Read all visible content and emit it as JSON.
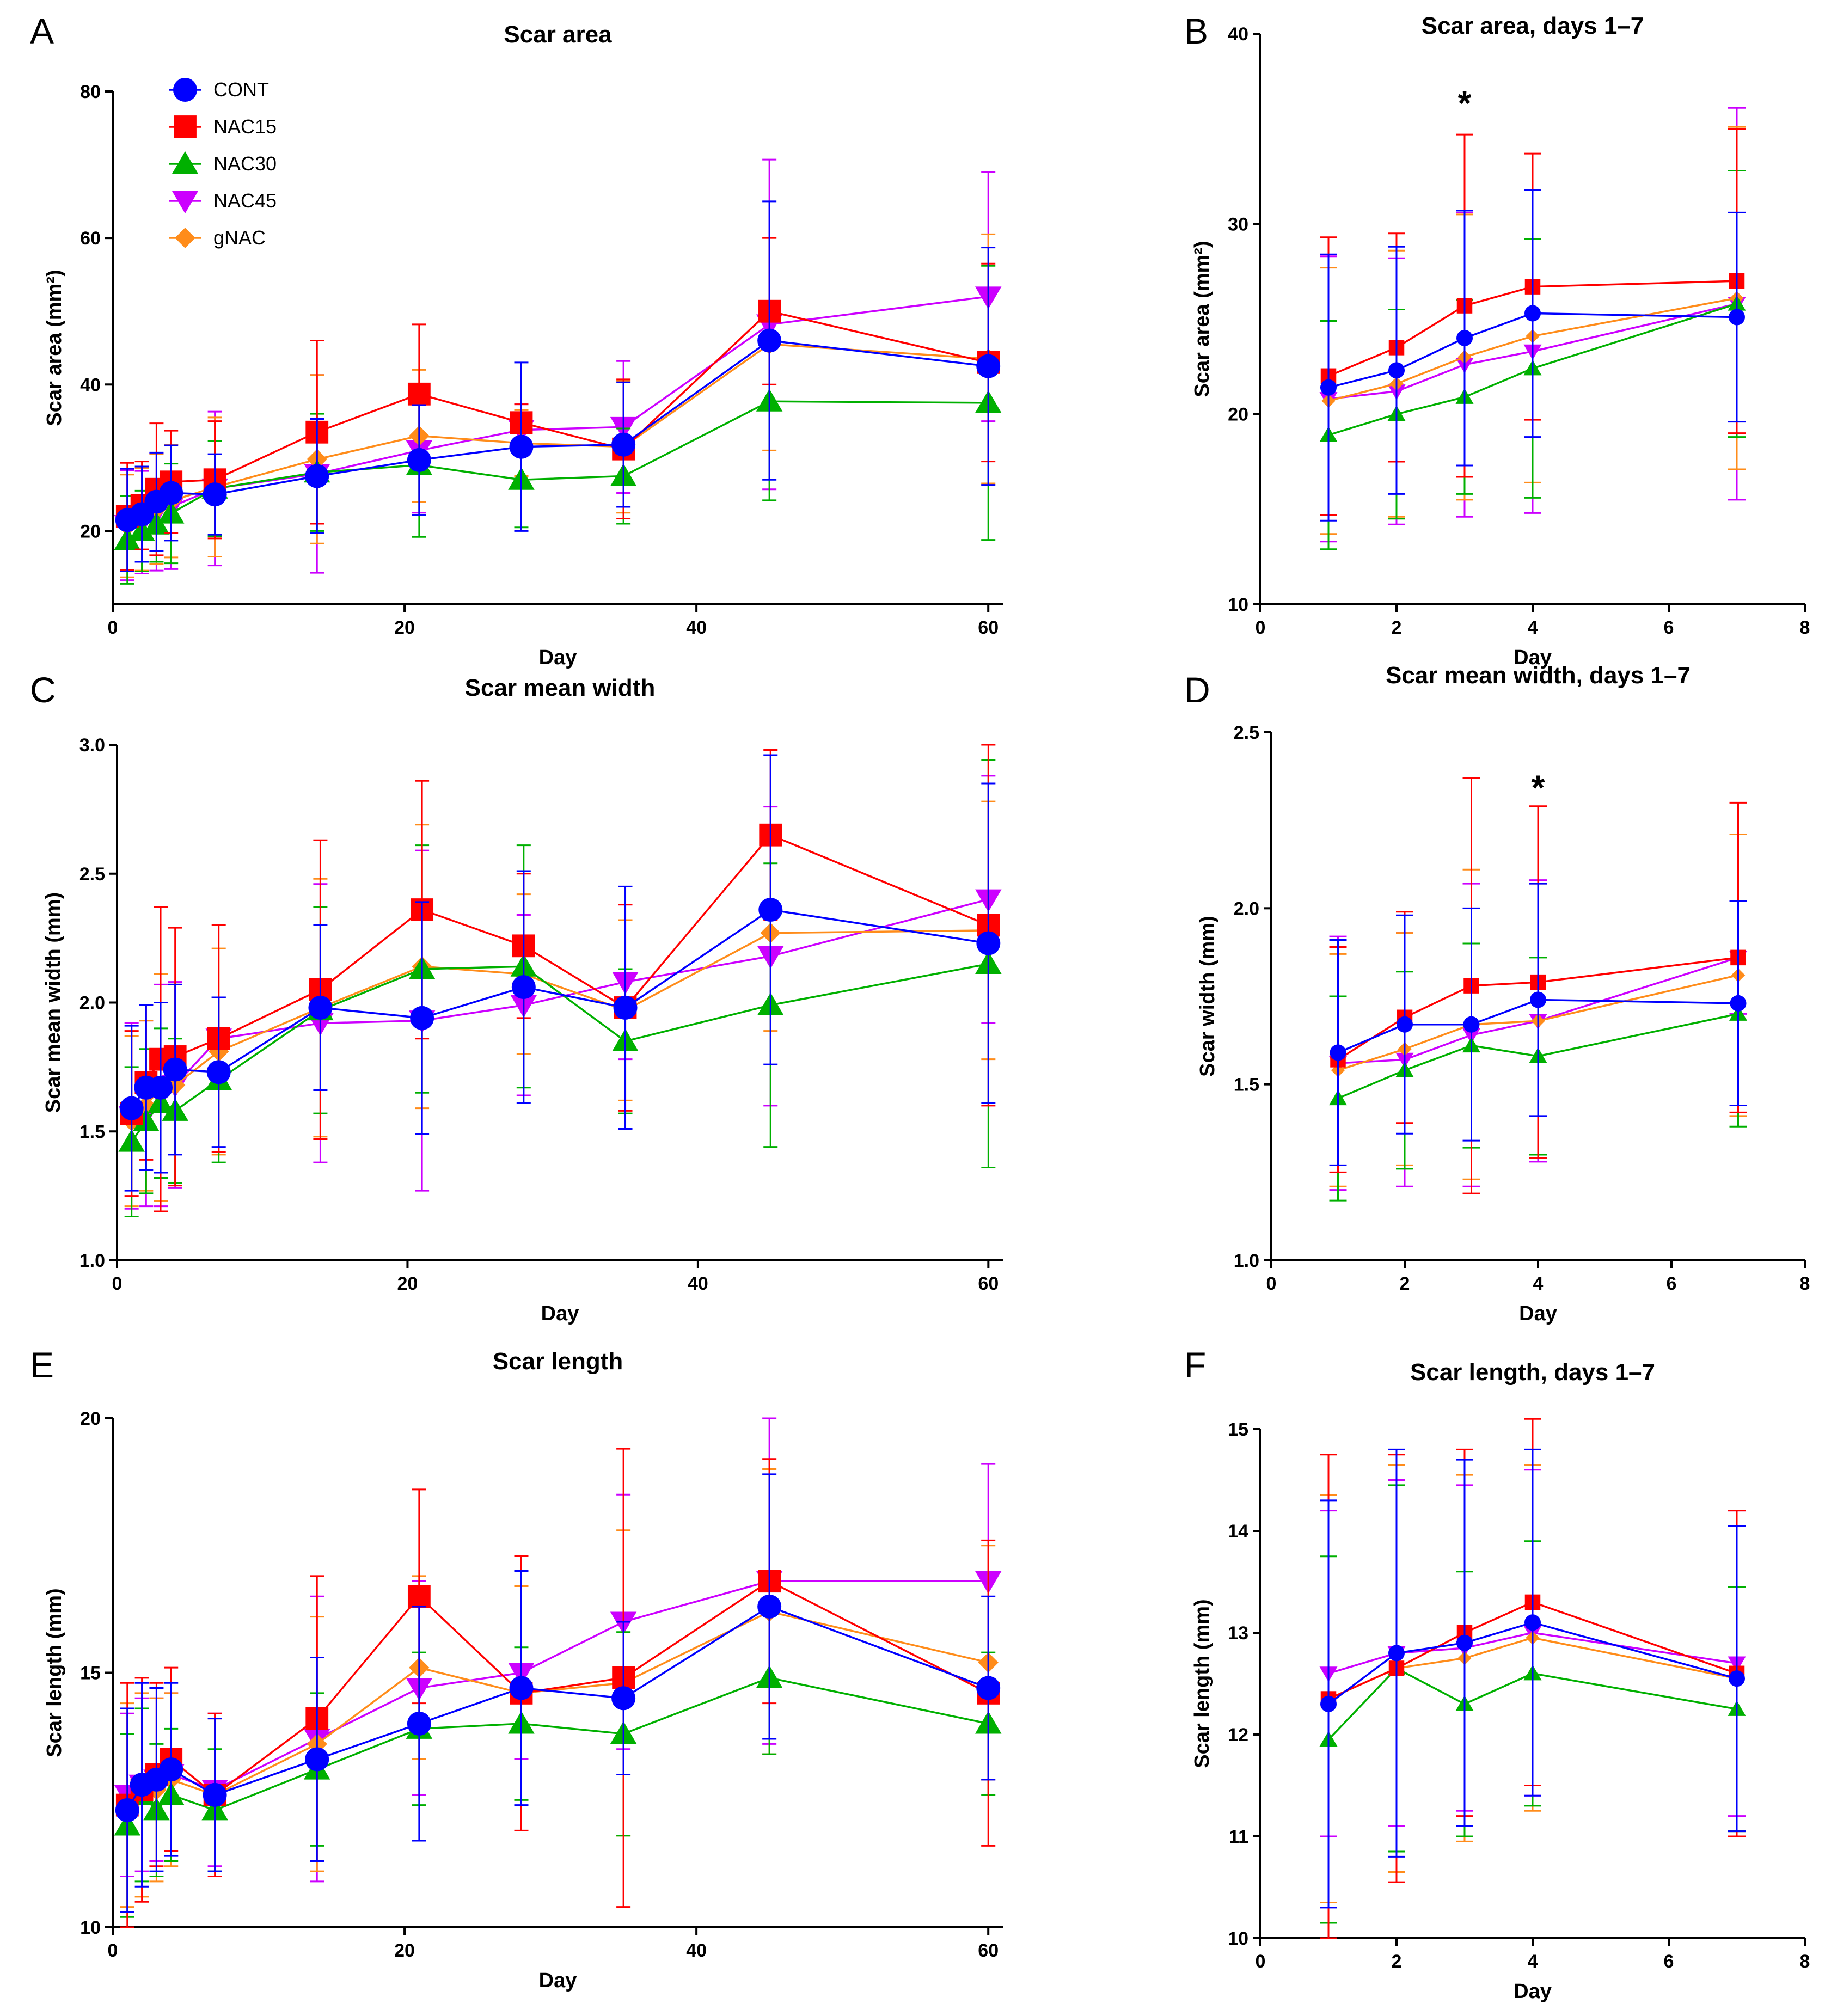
{
  "figure": {
    "series_styles": [
      {
        "name": "CONT",
        "color": "#0000ff",
        "marker": "circle"
      },
      {
        "name": "NAC15",
        "color": "#ff0000",
        "marker": "square"
      },
      {
        "name": "NAC30",
        "color": "#00b000",
        "marker": "triangle-up"
      },
      {
        "name": "NAC45",
        "color": "#cc00ff",
        "marker": "triangle-down"
      },
      {
        "name": "gNAC",
        "color": "#ff8c1a",
        "marker": "diamond"
      }
    ]
  },
  "chart_data": [
    {
      "panel": "A",
      "type": "line",
      "title": "Scar area",
      "xlabel": "Day",
      "ylabel": "Scar area (mm²)",
      "xlim": [
        0,
        61
      ],
      "ylim": [
        10,
        80
      ],
      "xticks": [
        0,
        20,
        40,
        60
      ],
      "yticks": [
        20,
        40,
        60,
        80
      ],
      "ylabel_offset": 95,
      "legend": "top-left",
      "annotations": [],
      "x": [
        1,
        2,
        3,
        4,
        7,
        14,
        21,
        28,
        35,
        45,
        60
      ],
      "series": [
        {
          "name": "CONT",
          "values": [
            21.5,
            22.3,
            24.0,
            25.2,
            25.0,
            27.5,
            29.7,
            31.5,
            31.8,
            46.0,
            42.5
          ],
          "err": [
            7.0,
            6.5,
            6.7,
            6.5,
            5.5,
            7.8,
            7.5,
            11.5,
            8.5,
            19.0,
            16.2
          ]
        },
        {
          "name": "NAC15",
          "values": [
            22.0,
            23.5,
            25.7,
            26.7,
            27.0,
            33.5,
            38.7,
            34.8,
            31.2,
            50.0,
            43.0
          ],
          "err": [
            7.3,
            6.0,
            9.0,
            7.0,
            8.0,
            12.5,
            9.5,
            2.5,
            9.5,
            10.0,
            13.5
          ]
        },
        {
          "name": "NAC30",
          "values": [
            18.8,
            20.0,
            20.9,
            22.4,
            25.8,
            28.0,
            29.0,
            27.0,
            27.5,
            37.7,
            37.5
          ],
          "err": [
            6.0,
            5.5,
            5.1,
            6.8,
            6.5,
            8.0,
            9.8,
            6.5,
            6.5,
            13.5,
            18.7
          ]
        },
        {
          "name": "NAC45",
          "values": [
            20.8,
            21.2,
            22.6,
            23.3,
            25.8,
            27.8,
            31.0,
            33.8,
            34.2,
            48.2,
            52.0
          ],
          "err": [
            7.5,
            7.0,
            8.0,
            8.5,
            10.5,
            13.5,
            8.5,
            3.5,
            9.0,
            22.5,
            17.0
          ]
        },
        {
          "name": "gNAC",
          "values": [
            20.7,
            21.6,
            23.0,
            24.1,
            26.0,
            29.8,
            33.0,
            32.0,
            31.5,
            45.5,
            43.5
          ],
          "err": [
            7.0,
            7.0,
            7.5,
            7.7,
            9.5,
            11.5,
            9.0,
            4.5,
            9.0,
            14.5,
            17.0
          ]
        }
      ]
    },
    {
      "panel": "B",
      "type": "line",
      "title": "Scar area, days 1–7",
      "xlabel": "Day",
      "ylabel": "Scar area (mm²)",
      "xlim": [
        0,
        8
      ],
      "ylim": [
        10,
        40
      ],
      "xticks": [
        0,
        2,
        4,
        6,
        8
      ],
      "yticks": [
        10,
        20,
        30,
        40
      ],
      "ylabel_offset": 95,
      "annotations": [
        {
          "text": "*",
          "x": 3,
          "y": 36.3
        }
      ],
      "x": [
        1,
        2,
        3,
        4,
        7
      ],
      "series": [
        {
          "name": "CONT",
          "values": [
            21.4,
            22.3,
            24.0,
            25.3,
            25.1
          ],
          "err": [
            7.0,
            6.5,
            6.7,
            6.5,
            5.5
          ]
        },
        {
          "name": "NAC15",
          "values": [
            22.0,
            23.5,
            25.7,
            26.7,
            27.0
          ],
          "err": [
            7.3,
            6.0,
            9.0,
            7.0,
            8.0
          ]
        },
        {
          "name": "NAC30",
          "values": [
            18.9,
            20.0,
            20.9,
            22.4,
            25.8
          ],
          "err": [
            6.0,
            5.5,
            5.1,
            6.8,
            7.0
          ]
        },
        {
          "name": "NAC45",
          "values": [
            20.8,
            21.2,
            22.6,
            23.3,
            25.8
          ],
          "err": [
            7.5,
            7.0,
            8.0,
            8.5,
            10.3
          ]
        },
        {
          "name": "gNAC",
          "values": [
            20.7,
            21.6,
            23.0,
            24.1,
            26.1
          ],
          "err": [
            7.0,
            7.0,
            7.5,
            7.7,
            9.0
          ]
        }
      ]
    },
    {
      "panel": "C",
      "type": "line",
      "title": "Scar mean width",
      "xlabel": "Day",
      "ylabel": "Scar mean width (mm)",
      "xlim": [
        0,
        61
      ],
      "ylim": [
        1.0,
        3.0
      ],
      "xticks": [
        0,
        20,
        40,
        60
      ],
      "yticks": [
        1.0,
        1.5,
        2.0,
        2.5,
        3.0
      ],
      "ylabel_offset": 105,
      "annotations": [],
      "x": [
        1,
        2,
        3,
        4,
        7,
        14,
        21,
        28,
        35,
        45,
        60
      ],
      "series": [
        {
          "name": "CONT",
          "values": [
            1.59,
            1.67,
            1.67,
            1.74,
            1.73,
            1.98,
            1.94,
            2.06,
            1.98,
            2.36,
            2.23
          ],
          "err": [
            0.32,
            0.32,
            0.33,
            0.33,
            0.29,
            0.32,
            0.45,
            0.45,
            0.47,
            0.6,
            0.62
          ]
        },
        {
          "name": "NAC15",
          "values": [
            1.57,
            1.69,
            1.78,
            1.79,
            1.86,
            2.05,
            2.36,
            2.22,
            1.98,
            2.65,
            2.3
          ],
          "err": [
            0.32,
            0.3,
            0.59,
            0.5,
            0.44,
            0.58,
            0.5,
            0.28,
            0.4,
            0.33,
            0.7
          ]
        },
        {
          "name": "NAC30",
          "values": [
            1.46,
            1.54,
            1.61,
            1.58,
            1.7,
            1.97,
            2.13,
            2.14,
            1.85,
            1.99,
            2.15
          ],
          "err": [
            0.29,
            0.28,
            0.29,
            0.28,
            0.32,
            0.4,
            0.48,
            0.47,
            0.28,
            0.55,
            0.79
          ]
        },
        {
          "name": "NAC45",
          "values": [
            1.56,
            1.57,
            1.64,
            1.68,
            1.86,
            1.92,
            1.93,
            1.99,
            2.08,
            2.18,
            2.4
          ],
          "err": [
            0.36,
            0.36,
            0.43,
            0.4,
            0.16,
            0.54,
            0.66,
            0.35,
            0.3,
            0.58,
            0.48
          ]
        },
        {
          "name": "gNAC",
          "values": [
            1.54,
            1.6,
            1.67,
            1.68,
            1.81,
            1.98,
            2.14,
            2.11,
            1.97,
            2.27,
            2.28
          ],
          "err": [
            0.33,
            0.33,
            0.44,
            0.39,
            0.4,
            0.5,
            0.55,
            0.31,
            0.35,
            0.38,
            0.5
          ]
        }
      ]
    },
    {
      "panel": "D",
      "type": "line",
      "title": "Scar mean width, days 1–7",
      "xlabel": "Day",
      "ylabel": "Scar width (mm)",
      "xlim": [
        0,
        8
      ],
      "ylim": [
        1.0,
        2.5
      ],
      "xticks": [
        0,
        2,
        4,
        6,
        8
      ],
      "yticks": [
        1.0,
        1.5,
        2.0,
        2.5
      ],
      "ylabel_offset": 105,
      "annotations": [
        {
          "text": "*",
          "x": 4,
          "y": 2.34
        }
      ],
      "x": [
        1,
        2,
        3,
        4,
        7
      ],
      "series": [
        {
          "name": "CONT",
          "values": [
            1.59,
            1.67,
            1.67,
            1.74,
            1.73
          ],
          "err": [
            0.32,
            0.31,
            0.33,
            0.33,
            0.29
          ]
        },
        {
          "name": "NAC15",
          "values": [
            1.57,
            1.69,
            1.78,
            1.79,
            1.86
          ],
          "err": [
            0.32,
            0.3,
            0.59,
            0.5,
            0.44
          ]
        },
        {
          "name": "NAC30",
          "values": [
            1.46,
            1.54,
            1.61,
            1.58,
            1.7
          ],
          "err": [
            0.29,
            0.28,
            0.29,
            0.28,
            0.32
          ]
        },
        {
          "name": "NAC45",
          "values": [
            1.56,
            1.57,
            1.64,
            1.68,
            1.86
          ],
          "err": [
            0.36,
            0.36,
            0.43,
            0.4,
            0.16
          ]
        },
        {
          "name": "gNAC",
          "values": [
            1.54,
            1.6,
            1.67,
            1.68,
            1.81
          ],
          "err": [
            0.33,
            0.33,
            0.44,
            0.39,
            0.4
          ]
        }
      ]
    },
    {
      "panel": "E",
      "type": "line",
      "title": "Scar length",
      "xlabel": "Day",
      "ylabel": "Scar length (mm)",
      "xlim": [
        0,
        61
      ],
      "ylim": [
        10,
        20
      ],
      "xticks": [
        0,
        20,
        40,
        60
      ],
      "yticks": [
        10,
        15,
        20
      ],
      "ylabel_offset": 95,
      "annotations": [],
      "x": [
        1,
        2,
        3,
        4,
        7,
        14,
        21,
        28,
        35,
        45,
        60
      ],
      "series": [
        {
          "name": "CONT",
          "values": [
            12.3,
            12.8,
            12.9,
            13.1,
            12.6,
            13.3,
            14.0,
            14.7,
            14.5,
            16.3,
            14.7
          ],
          "err": [
            2.0,
            2.0,
            1.8,
            1.7,
            1.5,
            2.0,
            2.3,
            2.3,
            1.5,
            2.6,
            1.8
          ]
        },
        {
          "name": "NAC15",
          "values": [
            12.4,
            12.7,
            13.0,
            13.3,
            12.6,
            14.1,
            16.5,
            14.6,
            14.9,
            16.8,
            14.6
          ],
          "err": [
            2.4,
            2.2,
            1.8,
            1.8,
            1.6,
            2.8,
            2.1,
            2.7,
            4.5,
            2.4,
            3.0
          ]
        },
        {
          "name": "NAC30",
          "values": [
            12.0,
            12.6,
            12.3,
            12.6,
            12.3,
            13.1,
            13.9,
            14.0,
            13.8,
            14.9,
            14.0
          ],
          "err": [
            1.8,
            1.7,
            1.3,
            1.3,
            1.2,
            1.5,
            1.5,
            1.5,
            2.0,
            1.5,
            1.4
          ]
        },
        {
          "name": "NAC45",
          "values": [
            12.6,
            12.8,
            12.9,
            13.0,
            12.7,
            13.7,
            14.7,
            15.0,
            16.0,
            16.8,
            16.8
          ],
          "err": [
            1.6,
            1.7,
            1.6,
            1.6,
            1.5,
            2.8,
            2.1,
            1.7,
            2.5,
            3.2,
            2.3
          ]
        },
        {
          "name": "gNAC",
          "values": [
            12.4,
            12.6,
            12.7,
            12.9,
            12.6,
            13.6,
            15.1,
            14.6,
            14.8,
            16.2,
            15.2
          ],
          "err": [
            2.0,
            2.0,
            1.8,
            1.7,
            1.5,
            2.5,
            1.8,
            2.1,
            3.0,
            2.8,
            2.3
          ]
        }
      ]
    },
    {
      "panel": "F",
      "type": "line",
      "title": "Scar length, days 1–7",
      "xlabel": "Day",
      "ylabel": "Scar length (mm)",
      "xlim": [
        0,
        8
      ],
      "ylim": [
        10,
        15
      ],
      "xticks": [
        0,
        2,
        4,
        6,
        8
      ],
      "yticks": [
        10,
        11,
        12,
        13,
        14,
        15
      ],
      "ylabel_offset": 95,
      "annotations": [],
      "x": [
        1,
        2,
        3,
        4,
        7
      ],
      "series": [
        {
          "name": "CONT",
          "values": [
            12.3,
            12.8,
            12.9,
            13.1,
            12.55
          ],
          "err": [
            2.0,
            2.0,
            1.8,
            1.7,
            1.5
          ]
        },
        {
          "name": "NAC15",
          "values": [
            12.35,
            12.65,
            13.0,
            13.3,
            12.6
          ],
          "err": [
            2.4,
            2.1,
            1.8,
            1.8,
            1.6
          ]
        },
        {
          "name": "NAC30",
          "values": [
            11.95,
            12.65,
            12.3,
            12.6,
            12.25
          ],
          "err": [
            1.8,
            1.8,
            1.3,
            1.3,
            1.2
          ]
        },
        {
          "name": "NAC45",
          "values": [
            12.6,
            12.8,
            12.85,
            13.0,
            12.7
          ],
          "err": [
            1.6,
            1.7,
            1.6,
            1.6,
            1.5
          ]
        },
        {
          "name": "gNAC",
          "values": [
            12.35,
            12.65,
            12.75,
            12.95,
            12.55
          ],
          "err": [
            2.0,
            2.0,
            1.8,
            1.7,
            1.5
          ]
        }
      ]
    }
  ]
}
